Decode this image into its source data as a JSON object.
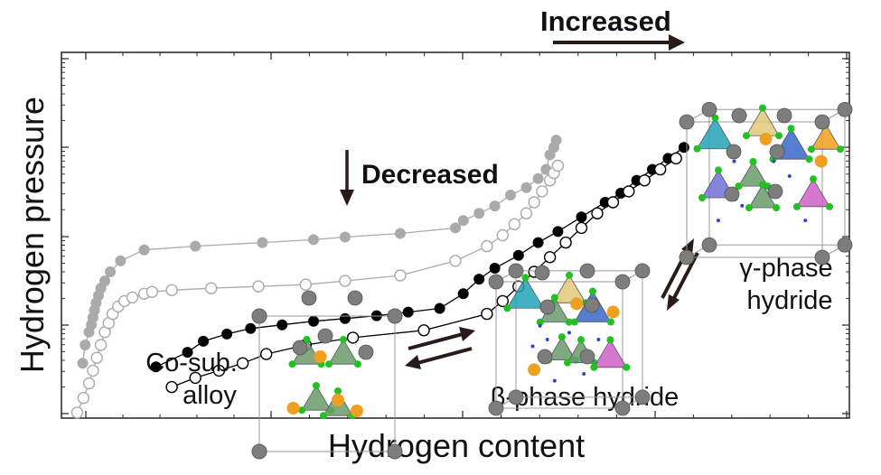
{
  "chart_data": {
    "type": "scatter",
    "title": "",
    "xlabel": "Hydrogen content",
    "ylabel": "Hydrogen pressure",
    "xlim": [
      0,
      10
    ],
    "ylim": [
      0,
      10
    ],
    "grid": false,
    "axis_ticks_labeled": false,
    "series": [
      {
        "style": "gray-filled",
        "color": "#aaaaaa",
        "marker": "filled-circle",
        "x": [
          0.27,
          0.3,
          0.35,
          0.38,
          0.4,
          0.42,
          0.44,
          0.47,
          0.5,
          0.55,
          0.62,
          0.75,
          1.05,
          1.7,
          2.55,
          3.2,
          3.6,
          4.3,
          5.0,
          5.1,
          5.3,
          5.5,
          5.7,
          5.9,
          6.05,
          6.15,
          6.2,
          6.25,
          6.28
        ],
        "y": [
          1.5,
          2.0,
          2.35,
          2.55,
          2.75,
          2.95,
          3.15,
          3.35,
          3.55,
          3.75,
          4.0,
          4.3,
          4.6,
          4.7,
          4.8,
          4.88,
          4.95,
          5.05,
          5.2,
          5.4,
          5.6,
          5.8,
          6.1,
          6.3,
          6.55,
          6.8,
          7.2,
          7.4,
          7.6
        ]
      },
      {
        "style": "gray-open",
        "color": "#aaaaaa",
        "marker": "open-circle",
        "x": [
          0.2,
          0.28,
          0.35,
          0.4,
          0.45,
          0.5,
          0.55,
          0.6,
          0.65,
          0.72,
          0.8,
          0.9,
          1.05,
          1.15,
          1.4,
          1.9,
          2.5,
          3.1,
          3.6,
          4.3,
          5.0,
          5.4,
          5.6,
          5.75,
          5.9,
          6.0,
          6.1,
          6.2,
          6.25,
          6.3
        ],
        "y": [
          0.15,
          0.55,
          0.95,
          1.3,
          1.65,
          2.0,
          2.35,
          2.6,
          2.85,
          3.05,
          3.2,
          3.3,
          3.4,
          3.45,
          3.5,
          3.55,
          3.6,
          3.65,
          3.75,
          3.9,
          4.3,
          4.7,
          5.0,
          5.3,
          5.6,
          5.9,
          6.2,
          6.5,
          6.7,
          6.9
        ]
      },
      {
        "style": "black-filled",
        "color": "#000000",
        "marker": "filled-circle",
        "x": [
          1.2,
          1.6,
          1.8,
          2.1,
          2.4,
          2.8,
          3.2,
          3.6,
          4.0,
          4.4,
          4.8,
          5.1,
          5.3,
          5.5,
          5.8,
          6.05,
          6.3,
          6.6,
          6.9,
          7.1,
          7.3,
          7.5,
          7.7,
          7.9
        ],
        "y": [
          1.4,
          1.8,
          2.1,
          2.3,
          2.45,
          2.55,
          2.65,
          2.72,
          2.8,
          2.9,
          3.0,
          3.4,
          3.8,
          4.1,
          4.45,
          4.8,
          5.1,
          5.5,
          5.9,
          6.15,
          6.5,
          6.8,
          7.1,
          7.4
        ]
      },
      {
        "style": "black-open",
        "color": "#000000",
        "marker": "open-circle",
        "x": [
          1.4,
          1.7,
          2.0,
          2.3,
          2.6,
          3.1,
          3.7,
          4.6,
          5.4,
          5.6,
          5.8,
          6.0,
          6.2,
          6.4,
          6.6,
          6.8,
          7.0,
          7.2,
          7.4,
          7.6,
          7.8
        ],
        "y": [
          0.85,
          1.1,
          1.3,
          1.5,
          1.75,
          2.0,
          2.2,
          2.4,
          2.85,
          3.2,
          3.6,
          4.0,
          4.4,
          4.8,
          5.2,
          5.6,
          5.9,
          6.2,
          6.5,
          6.8,
          7.1
        ]
      }
    ],
    "annotations": {
      "increased": "Increased",
      "decreased": "Decreased",
      "co_sub": [
        "Co-sub.",
        "alloy"
      ],
      "beta": "β-phase hydride",
      "gamma": [
        "γ-phase",
        "hydride"
      ]
    }
  },
  "colors": {
    "axis": "#222222",
    "gray": "#aaaaaa",
    "black": "#000000",
    "arrow": "#2a1a1a"
  },
  "crystal_icons": [
    "co-sub-alloy-structure",
    "beta-phase-structure",
    "gamma-phase-structure"
  ]
}
